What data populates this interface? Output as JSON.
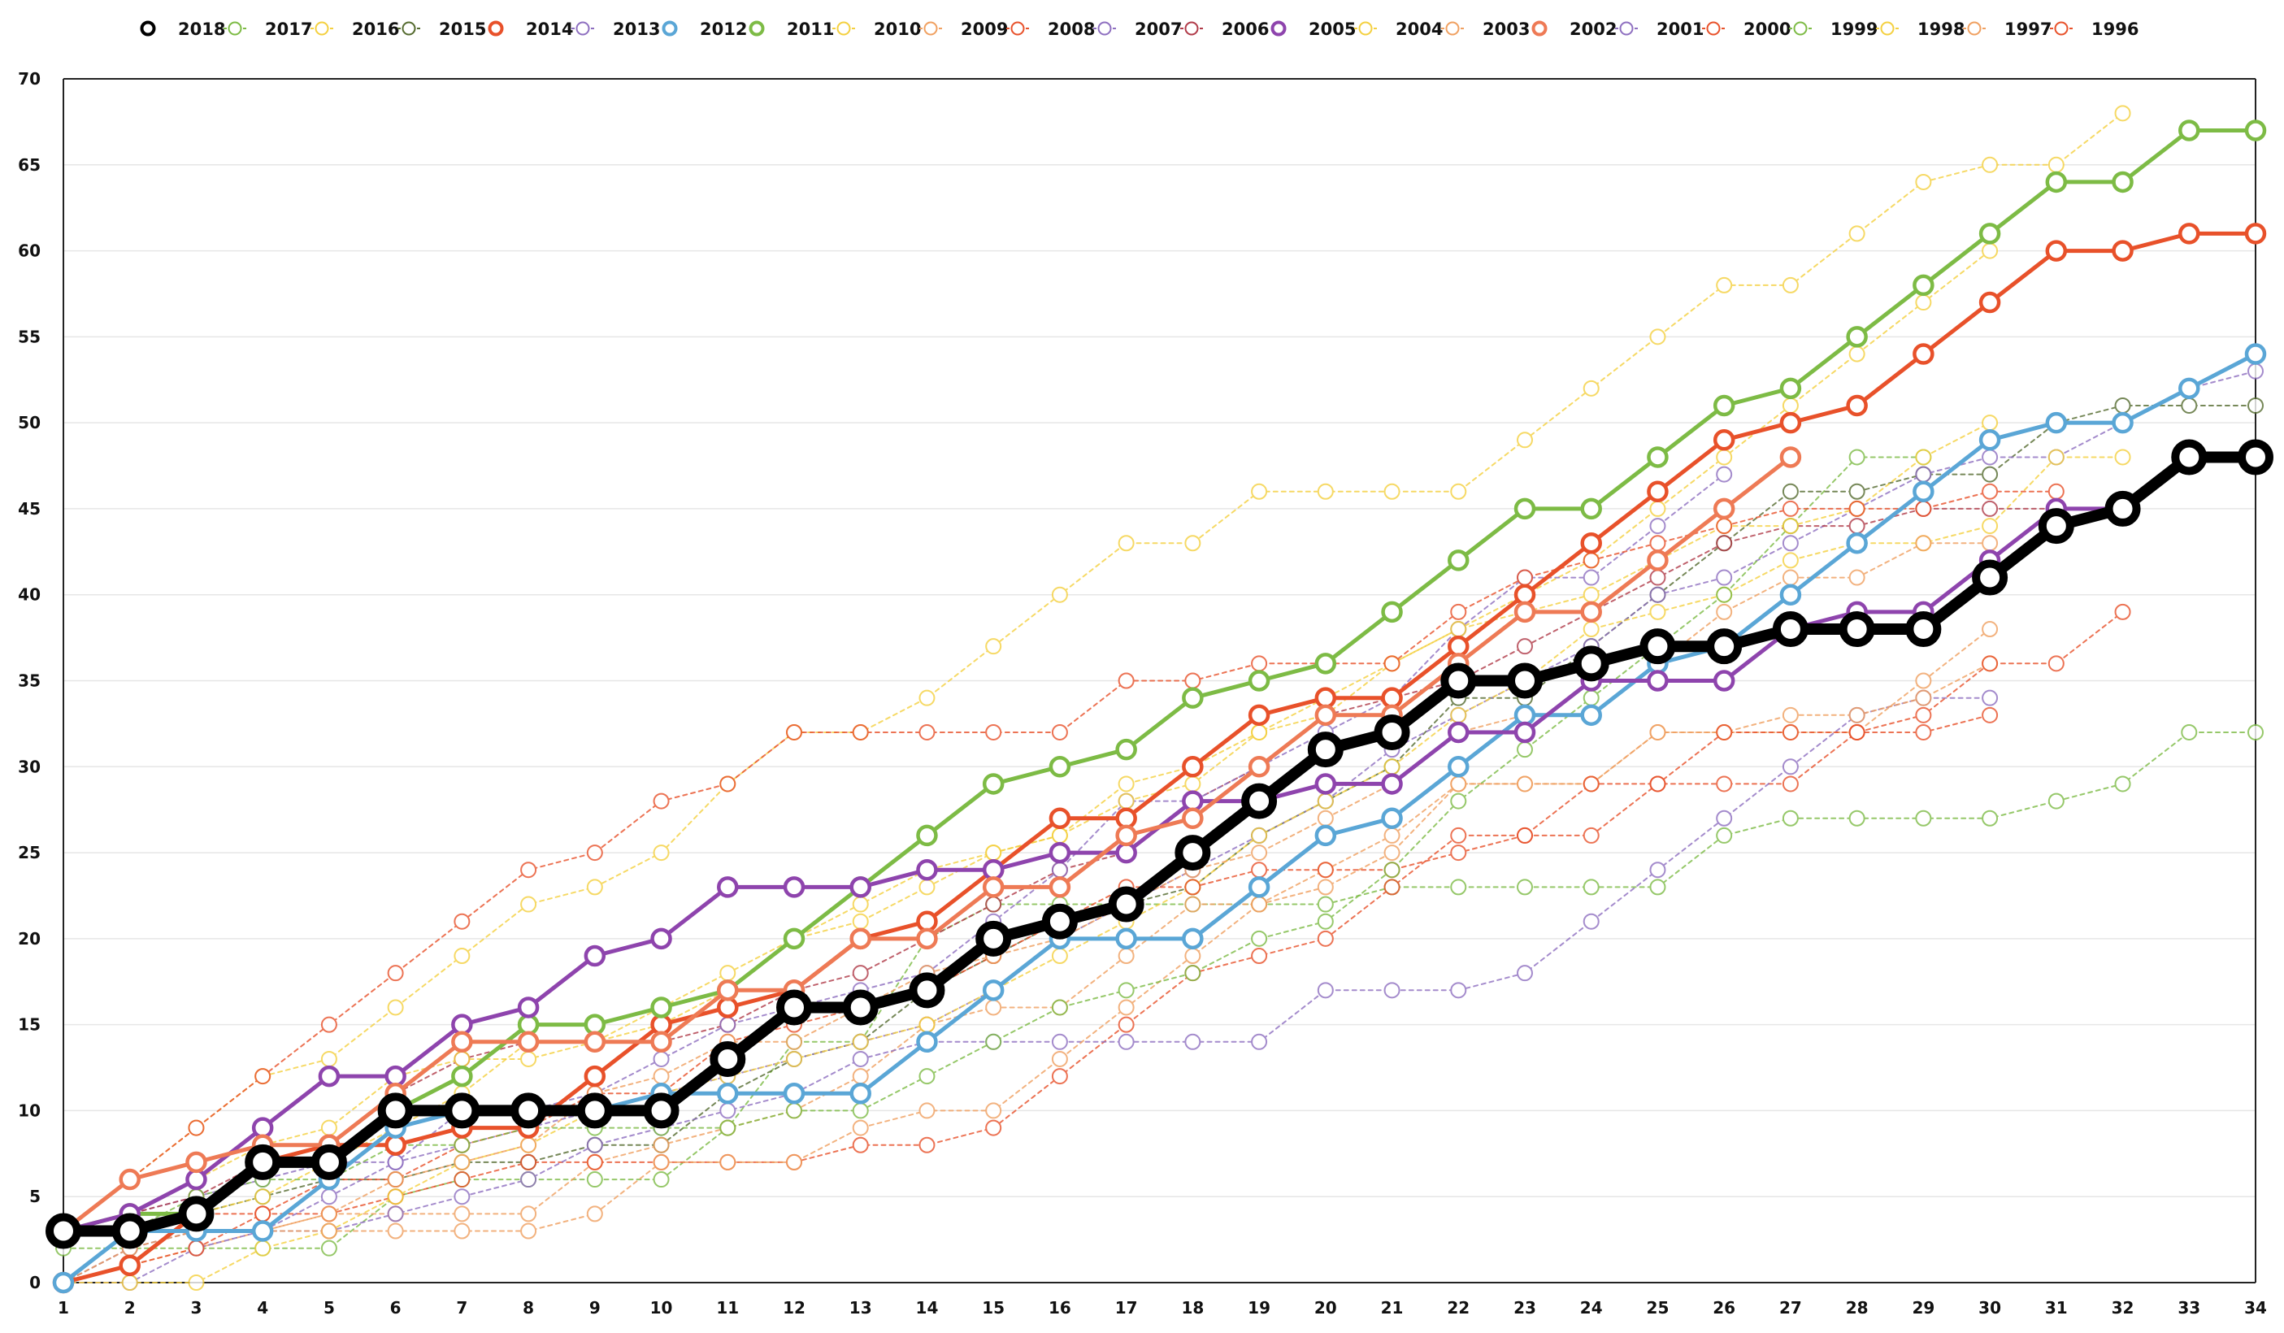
{
  "chart_data": {
    "type": "line",
    "title": "",
    "xlabel": "",
    "ylabel": "",
    "xlim": [
      1,
      34
    ],
    "ylim": [
      0,
      70
    ],
    "y_ticks": [
      0,
      5,
      10,
      15,
      20,
      25,
      30,
      35,
      40,
      45,
      50,
      55,
      60,
      65,
      70
    ],
    "x": [
      1,
      2,
      3,
      4,
      5,
      6,
      7,
      8,
      9,
      10,
      11,
      12,
      13,
      14,
      15,
      16,
      17,
      18,
      19,
      20,
      21,
      22,
      23,
      24,
      25,
      26,
      27,
      28,
      29,
      30,
      31,
      32,
      33,
      34
    ],
    "grid": "horizontal",
    "legend_position": "top",
    "series": [
      {
        "name": "2018",
        "color": "#000000",
        "style": "bold",
        "values": [
          3,
          3,
          4,
          7,
          7,
          10,
          10,
          10,
          10,
          10,
          13,
          16,
          16,
          17,
          20,
          21,
          22,
          25,
          28,
          31,
          32,
          35,
          35,
          36,
          37,
          37,
          38,
          38,
          38,
          41,
          44,
          45,
          48,
          48
        ]
      },
      {
        "name": "2017",
        "color": "#7dbb45",
        "style": "dotted",
        "values": [
          2,
          2,
          2,
          2,
          2,
          5,
          6,
          6,
          6,
          6,
          9,
          14,
          14,
          20,
          22,
          22,
          22,
          22,
          22,
          22,
          23,
          23,
          23,
          23,
          23,
          26,
          27,
          27,
          27,
          27,
          28,
          29,
          32,
          32
        ]
      },
      {
        "name": "2016",
        "color": "#f4d03f",
        "style": "dotted",
        "values": [
          3,
          6,
          9,
          12,
          13,
          16,
          19,
          22,
          23,
          25,
          29,
          32,
          32,
          34,
          37,
          40,
          43,
          43,
          46,
          46,
          46,
          46,
          49,
          52,
          55,
          58,
          58,
          61,
          64,
          65,
          65,
          68,
          null,
          null
        ]
      },
      {
        "name": "2015",
        "color": "#556b2f",
        "style": "dotted",
        "values": [
          0,
          3,
          4,
          5,
          6,
          6,
          7,
          7,
          8,
          8,
          11,
          13,
          14,
          17,
          19,
          21,
          22,
          23,
          26,
          28,
          30,
          34,
          34,
          37,
          40,
          43,
          46,
          46,
          47,
          47,
          50,
          51,
          51,
          51
        ]
      },
      {
        "name": "2014",
        "color": "#e8512a",
        "style": "solid",
        "values": [
          0,
          1,
          4,
          7,
          8,
          8,
          9,
          9,
          12,
          15,
          16,
          17,
          20,
          21,
          24,
          27,
          27,
          30,
          33,
          34,
          34,
          37,
          40,
          43,
          46,
          49,
          50,
          51,
          54,
          57,
          60,
          60,
          61,
          61
        ]
      },
      {
        "name": "2013",
        "color": "#8e6fc0",
        "style": "dotted",
        "values": [
          3,
          4,
          5,
          6,
          7,
          7,
          8,
          9,
          10,
          11,
          12,
          13,
          14,
          15,
          17,
          20,
          22,
          24,
          26,
          28,
          31,
          33,
          35,
          37,
          40,
          41,
          43,
          45,
          47,
          48,
          48,
          50,
          52,
          53
        ]
      },
      {
        "name": "2012",
        "color": "#5aa6d6",
        "style": "solid",
        "values": [
          0,
          3,
          3,
          3,
          6,
          9,
          10,
          10,
          10,
          11,
          11,
          11,
          11,
          14,
          17,
          20,
          20,
          20,
          23,
          26,
          27,
          30,
          33,
          33,
          36,
          37,
          40,
          43,
          46,
          49,
          50,
          50,
          52,
          54
        ]
      },
      {
        "name": "2011",
        "color": "#7dbb45",
        "style": "solid",
        "values": [
          3,
          4,
          4,
          7,
          7,
          10,
          12,
          15,
          15,
          16,
          17,
          20,
          23,
          26,
          29,
          30,
          31,
          34,
          35,
          36,
          39,
          42,
          45,
          45,
          48,
          51,
          52,
          55,
          58,
          61,
          64,
          64,
          67,
          67
        ]
      },
      {
        "name": "2010",
        "color": "#f4d03f",
        "style": "dotted",
        "values": [
          3,
          3,
          4,
          5,
          7,
          9,
          11,
          14,
          14,
          15,
          17,
          20,
          22,
          24,
          25,
          26,
          29,
          30,
          32,
          34,
          36,
          38,
          40,
          42,
          45,
          48,
          51,
          54,
          57,
          60,
          null,
          null,
          null,
          null
        ]
      },
      {
        "name": "2009",
        "color": "#f0a060",
        "style": "dotted",
        "values": [
          0,
          1,
          2,
          3,
          4,
          4,
          4,
          4,
          7,
          8,
          9,
          10,
          12,
          15,
          16,
          16,
          19,
          22,
          22,
          23,
          25,
          29,
          29,
          29,
          32,
          32,
          32,
          32,
          35,
          38,
          null,
          null,
          null,
          null
        ]
      },
      {
        "name": "2008",
        "color": "#e8512a",
        "style": "dotted",
        "values": [
          3,
          3,
          4,
          4,
          4,
          5,
          6,
          7,
          7,
          7,
          7,
          7,
          8,
          8,
          9,
          12,
          15,
          18,
          19,
          20,
          23,
          26,
          26,
          26,
          29,
          29,
          29,
          32,
          32,
          33,
          null,
          null,
          null,
          null
        ]
      },
      {
        "name": "2007",
        "color": "#8e6fc0",
        "style": "dotted",
        "values": [
          0,
          0,
          2,
          3,
          3,
          4,
          5,
          6,
          8,
          9,
          10,
          11,
          13,
          14,
          14,
          14,
          14,
          14,
          14,
          17,
          17,
          17,
          18,
          21,
          24,
          27,
          30,
          33,
          34,
          34,
          null,
          null,
          null,
          null
        ]
      },
      {
        "name": "2006",
        "color": "#b03a48",
        "style": "dotted",
        "values": [
          3,
          4,
          5,
          7,
          8,
          11,
          13,
          14,
          14,
          14,
          15,
          17,
          18,
          20,
          22,
          24,
          25,
          28,
          30,
          33,
          34,
          35,
          37,
          39,
          41,
          43,
          44,
          44,
          45,
          45,
          45,
          null,
          null,
          null
        ]
      },
      {
        "name": "2005",
        "color": "#8e44ad",
        "style": "solid",
        "values": [
          3,
          4,
          6,
          9,
          12,
          12,
          15,
          16,
          19,
          20,
          23,
          23,
          23,
          24,
          24,
          25,
          25,
          28,
          28,
          29,
          29,
          32,
          32,
          35,
          35,
          35,
          38,
          39,
          39,
          42,
          45,
          45,
          null,
          null
        ]
      },
      {
        "name": "2004",
        "color": "#f4d03f",
        "style": "dotted",
        "values": [
          0,
          0,
          0,
          2,
          3,
          5,
          7,
          8,
          10,
          11,
          12,
          13,
          14,
          15,
          17,
          19,
          21,
          23,
          26,
          28,
          30,
          33,
          35,
          38,
          39,
          40,
          42,
          43,
          43,
          44,
          48,
          48,
          null,
          null
        ]
      },
      {
        "name": "2003",
        "color": "#f0a060",
        "style": "dotted",
        "values": [
          0,
          2,
          3,
          3,
          3,
          3,
          3,
          3,
          4,
          7,
          7,
          7,
          9,
          10,
          10,
          13,
          16,
          19,
          22,
          24,
          26,
          29,
          29,
          29,
          32,
          32,
          33,
          33,
          34,
          36,
          null,
          null,
          null,
          null
        ]
      },
      {
        "name": "2002",
        "color": "#ee7a55",
        "style": "solid",
        "values": [
          3,
          6,
          7,
          8,
          8,
          11,
          14,
          14,
          14,
          14,
          17,
          17,
          20,
          20,
          23,
          23,
          26,
          27,
          30,
          33,
          33,
          36,
          39,
          39,
          42,
          45,
          48,
          null,
          null,
          null,
          null,
          null,
          null,
          null
        ]
      },
      {
        "name": "2001",
        "color": "#8e6fc0",
        "style": "dotted",
        "values": [
          0,
          2,
          3,
          3,
          5,
          7,
          10,
          10,
          11,
          13,
          15,
          16,
          17,
          18,
          21,
          24,
          28,
          28,
          30,
          32,
          34,
          38,
          41,
          41,
          44,
          47,
          null,
          null,
          null,
          null,
          null,
          null,
          null,
          null
        ]
      },
      {
        "name": "2000",
        "color": "#e8512a",
        "style": "dotted",
        "values": [
          0,
          1,
          2,
          4,
          6,
          6,
          8,
          9,
          11,
          11,
          14,
          15,
          16,
          17,
          19,
          21,
          23,
          23,
          24,
          24,
          24,
          25,
          26,
          29,
          29,
          32,
          32,
          32,
          33,
          36,
          36,
          39,
          null,
          null
        ]
      },
      {
        "name": "1999",
        "color": "#7dbb45",
        "style": "dotted",
        "values": [
          0,
          3,
          5,
          6,
          6,
          8,
          8,
          9,
          9,
          9,
          9,
          10,
          10,
          12,
          14,
          16,
          17,
          18,
          20,
          21,
          24,
          28,
          31,
          34,
          37,
          40,
          44,
          48,
          48,
          null,
          null,
          null,
          null,
          null
        ]
      },
      {
        "name": "1998",
        "color": "#f4d03f",
        "style": "dotted",
        "values": [
          3,
          4,
          6,
          8,
          9,
          12,
          13,
          13,
          14,
          16,
          18,
          20,
          21,
          23,
          25,
          26,
          28,
          29,
          32,
          33,
          36,
          38,
          39,
          40,
          42,
          44,
          44,
          45,
          48,
          50,
          null,
          null,
          null,
          null
        ]
      },
      {
        "name": "1997",
        "color": "#f0a060",
        "style": "dotted",
        "values": [
          0,
          2,
          3,
          3,
          4,
          6,
          7,
          8,
          11,
          12,
          14,
          14,
          16,
          18,
          19,
          20,
          22,
          24,
          25,
          27,
          29,
          32,
          33,
          33,
          36,
          39,
          41,
          41,
          43,
          43,
          null,
          null,
          null,
          null
        ]
      },
      {
        "name": "1996",
        "color": "#e8512a",
        "style": "dotted",
        "values": [
          3,
          6,
          9,
          12,
          15,
          18,
          21,
          24,
          25,
          28,
          29,
          32,
          32,
          32,
          32,
          32,
          35,
          35,
          36,
          36,
          36,
          39,
          41,
          42,
          43,
          44,
          45,
          45,
          45,
          46,
          46,
          null,
          null,
          null
        ]
      }
    ]
  }
}
